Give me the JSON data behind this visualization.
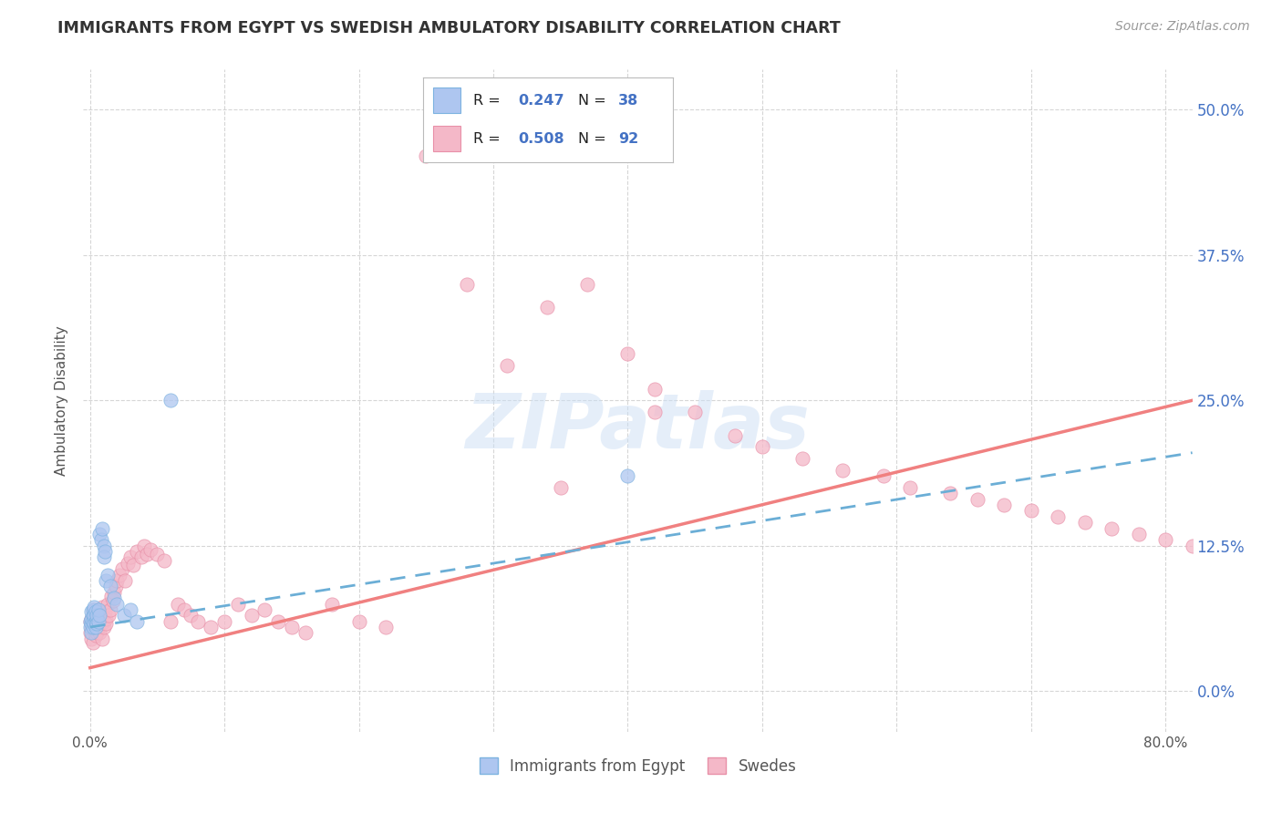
{
  "title": "IMMIGRANTS FROM EGYPT VS SWEDISH AMBULATORY DISABILITY CORRELATION CHART",
  "source": "Source: ZipAtlas.com",
  "ylabel": "Ambulatory Disability",
  "xlim": [
    -0.005,
    0.82
  ],
  "ylim": [
    -0.035,
    0.535
  ],
  "xlabel_vals": [
    0.0,
    0.1,
    0.2,
    0.3,
    0.4,
    0.5,
    0.6,
    0.7,
    0.8
  ],
  "xlabel_labels": [
    "0.0%",
    "",
    "",
    "",
    "",
    "",
    "",
    "",
    "80.0%"
  ],
  "ylabel_vals": [
    0.0,
    0.125,
    0.25,
    0.375,
    0.5
  ],
  "ylabel_labels": [
    "0.0%",
    "12.5%",
    "25.0%",
    "37.5%",
    "50.0%"
  ],
  "scatter_egypt_x": [
    0.0,
    0.0,
    0.001,
    0.001,
    0.001,
    0.001,
    0.002,
    0.002,
    0.002,
    0.002,
    0.003,
    0.003,
    0.003,
    0.004,
    0.004,
    0.004,
    0.005,
    0.005,
    0.005,
    0.006,
    0.006,
    0.007,
    0.007,
    0.008,
    0.009,
    0.01,
    0.01,
    0.011,
    0.012,
    0.013,
    0.015,
    0.018,
    0.02,
    0.025,
    0.03,
    0.035,
    0.06,
    0.4
  ],
  "scatter_egypt_y": [
    0.06,
    0.055,
    0.058,
    0.062,
    0.05,
    0.068,
    0.055,
    0.065,
    0.06,
    0.07,
    0.058,
    0.065,
    0.072,
    0.06,
    0.055,
    0.068,
    0.062,
    0.058,
    0.065,
    0.06,
    0.07,
    0.065,
    0.135,
    0.13,
    0.14,
    0.125,
    0.115,
    0.12,
    0.095,
    0.1,
    0.09,
    0.08,
    0.075,
    0.065,
    0.07,
    0.06,
    0.25,
    0.185
  ],
  "scatter_swedes_x": [
    0.0,
    0.0,
    0.001,
    0.001,
    0.001,
    0.002,
    0.002,
    0.002,
    0.003,
    0.003,
    0.003,
    0.004,
    0.004,
    0.005,
    0.005,
    0.006,
    0.006,
    0.007,
    0.007,
    0.008,
    0.008,
    0.009,
    0.009,
    0.01,
    0.01,
    0.011,
    0.012,
    0.012,
    0.013,
    0.014,
    0.015,
    0.016,
    0.017,
    0.018,
    0.019,
    0.02,
    0.022,
    0.024,
    0.026,
    0.028,
    0.03,
    0.032,
    0.035,
    0.038,
    0.04,
    0.042,
    0.045,
    0.05,
    0.055,
    0.06,
    0.065,
    0.07,
    0.075,
    0.08,
    0.09,
    0.1,
    0.11,
    0.12,
    0.13,
    0.14,
    0.15,
    0.16,
    0.18,
    0.2,
    0.22,
    0.25,
    0.28,
    0.31,
    0.34,
    0.37,
    0.4,
    0.42,
    0.45,
    0.48,
    0.5,
    0.53,
    0.56,
    0.59,
    0.61,
    0.64,
    0.66,
    0.68,
    0.7,
    0.72,
    0.74,
    0.76,
    0.78,
    0.8,
    0.82,
    0.84,
    0.35,
    0.42
  ],
  "scatter_swedes_y": [
    0.05,
    0.06,
    0.045,
    0.062,
    0.055,
    0.058,
    0.065,
    0.042,
    0.055,
    0.06,
    0.07,
    0.048,
    0.065,
    0.06,
    0.05,
    0.068,
    0.055,
    0.062,
    0.05,
    0.065,
    0.058,
    0.072,
    0.045,
    0.06,
    0.055,
    0.068,
    0.062,
    0.058,
    0.075,
    0.065,
    0.07,
    0.082,
    0.078,
    0.085,
    0.09,
    0.095,
    0.1,
    0.105,
    0.095,
    0.11,
    0.115,
    0.108,
    0.12,
    0.115,
    0.125,
    0.118,
    0.122,
    0.118,
    0.112,
    0.06,
    0.075,
    0.07,
    0.065,
    0.06,
    0.055,
    0.06,
    0.075,
    0.065,
    0.07,
    0.06,
    0.055,
    0.05,
    0.075,
    0.06,
    0.055,
    0.46,
    0.35,
    0.28,
    0.33,
    0.35,
    0.29,
    0.26,
    0.24,
    0.22,
    0.21,
    0.2,
    0.19,
    0.185,
    0.175,
    0.17,
    0.165,
    0.16,
    0.155,
    0.15,
    0.145,
    0.14,
    0.135,
    0.13,
    0.125,
    0.12,
    0.175,
    0.24
  ],
  "egypt_line_x": [
    0.0,
    0.82
  ],
  "egypt_line_y": [
    0.055,
    0.205
  ],
  "swedes_line_x": [
    0.0,
    0.82
  ],
  "swedes_line_y": [
    0.02,
    0.25
  ],
  "egypt_line_color": "#6baed6",
  "swedes_line_color": "#f08080",
  "egypt_scatter_color": "#aec6f0",
  "swedes_scatter_color": "#f4b8c8",
  "egypt_scatter_edge": "#7db3e0",
  "swedes_scatter_edge": "#e890a8",
  "watermark": "ZIPatlas",
  "background_color": "#ffffff",
  "grid_color": "#cccccc",
  "title_color": "#333333"
}
